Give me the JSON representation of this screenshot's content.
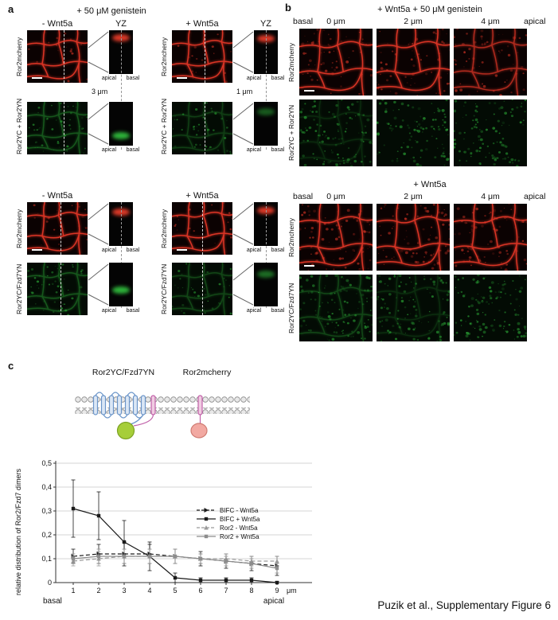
{
  "accent_colors": {
    "red_channel": "#d93425",
    "green_channel": "#2eb43a"
  },
  "panel_a": {
    "label": "a",
    "title": "+ 50 μM genistein",
    "apical": "apical",
    "basal": "basal",
    "top_left": {
      "condition": "- Wnt5a",
      "yz": "YZ",
      "depth": "3 μm",
      "row1_label": "Ror2mcherry",
      "row2_label": "Ror2YC + Ror2YN"
    },
    "top_right": {
      "condition": "+ Wnt5a",
      "yz": "YZ",
      "depth": "1 μm",
      "row1_label": "Ror2mcherry",
      "row2_label": "Ror2YC + Ror2YN"
    },
    "bottom_left": {
      "condition": "- Wnt5a",
      "row1_label": "Ror2mcherry",
      "row2_label": "Ror2YC/Fzd7YN"
    },
    "bottom_right": {
      "condition": "+ Wnt5a",
      "row1_label": "Ror2mcherry",
      "row2_label": "Ror2YC/Fzd7YN"
    }
  },
  "panel_b": {
    "label": "b",
    "top": {
      "title": "+ Wnt5a + 50 μM genistein",
      "col_labels": [
        "basal",
        "0 μm",
        "2 μm",
        "4 μm",
        "apical"
      ],
      "row1_label": "Ror2mcherry",
      "row2_label": "Ror2YC + Ror2YN"
    },
    "bottom": {
      "title": "+ Wnt5a",
      "col_labels": [
        "basal",
        "0 μm",
        "2 μm",
        "4 μm",
        "apical"
      ],
      "row1_label": "Ror2mcherry",
      "row2_label": "Ror2YC/Fzd7YN"
    }
  },
  "panel_c": {
    "label": "c",
    "diagram": {
      "left_label": "Ror2YC/Fzd7YN",
      "right_label": "Ror2mcherry"
    }
  },
  "chart_data": {
    "type": "line",
    "title": "",
    "ylabel": "relative distribution of Ror2/Fzd7 dimers",
    "x_unit": "μm",
    "x_axis_left_label": "basal",
    "x_axis_right_label": "apical",
    "x": [
      1,
      2,
      3,
      4,
      5,
      6,
      7,
      8,
      9
    ],
    "x_tick_labels": [
      "1",
      "2",
      "3",
      "4",
      "5",
      "6",
      "7",
      "8",
      "9"
    ],
    "y_ticks": [
      0,
      0.1,
      0.2,
      0.3,
      0.4,
      0.5
    ],
    "y_tick_labels": [
      "0",
      "0,1",
      "0,2",
      "0,3",
      "0,4",
      "0,5"
    ],
    "ylim": [
      0,
      0.5
    ],
    "xlim": [
      0.5,
      10
    ],
    "grid": true,
    "legend_position": "inside-right",
    "series": [
      {
        "name": "BIFC - Wnt5a",
        "color": "#1a1a1a",
        "line": "dashed",
        "marker": "triangle-right",
        "values": [
          0.11,
          0.12,
          0.12,
          0.12,
          0.11,
          0.1,
          0.09,
          0.08,
          0.07
        ],
        "errors": [
          0.03,
          0.04,
          0.05,
          0.04,
          0.03,
          0.03,
          0.03,
          0.03,
          0.04
        ]
      },
      {
        "name": "BIFC + Wnt5a",
        "color": "#1a1a1a",
        "line": "solid",
        "marker": "square",
        "values": [
          0.31,
          0.28,
          0.17,
          0.11,
          0.02,
          0.01,
          0.01,
          0.01,
          0.0
        ],
        "errors": [
          0.12,
          0.1,
          0.09,
          0.06,
          0.02,
          0.01,
          0.01,
          0.01,
          0.005
        ]
      },
      {
        "name": "Ror2 - Wnt5a",
        "color": "#9a9a9a",
        "line": "dashed",
        "marker": "triangle-up",
        "values": [
          0.09,
          0.1,
          0.11,
          0.11,
          0.11,
          0.1,
          0.1,
          0.09,
          0.09
        ],
        "errors": [
          0.02,
          0.03,
          0.03,
          0.03,
          0.03,
          0.02,
          0.02,
          0.02,
          0.02
        ]
      },
      {
        "name": "Ror2 + Wnt5a",
        "color": "#8c8c8c",
        "line": "solid",
        "marker": "square",
        "values": [
          0.1,
          0.11,
          0.11,
          0.11,
          0.11,
          0.1,
          0.09,
          0.08,
          0.06
        ],
        "errors": [
          0.02,
          0.03,
          0.03,
          0.03,
          0.03,
          0.02,
          0.02,
          0.02,
          0.02
        ]
      }
    ]
  },
  "footer": "Puzik et al., Supplementary Figure 6"
}
